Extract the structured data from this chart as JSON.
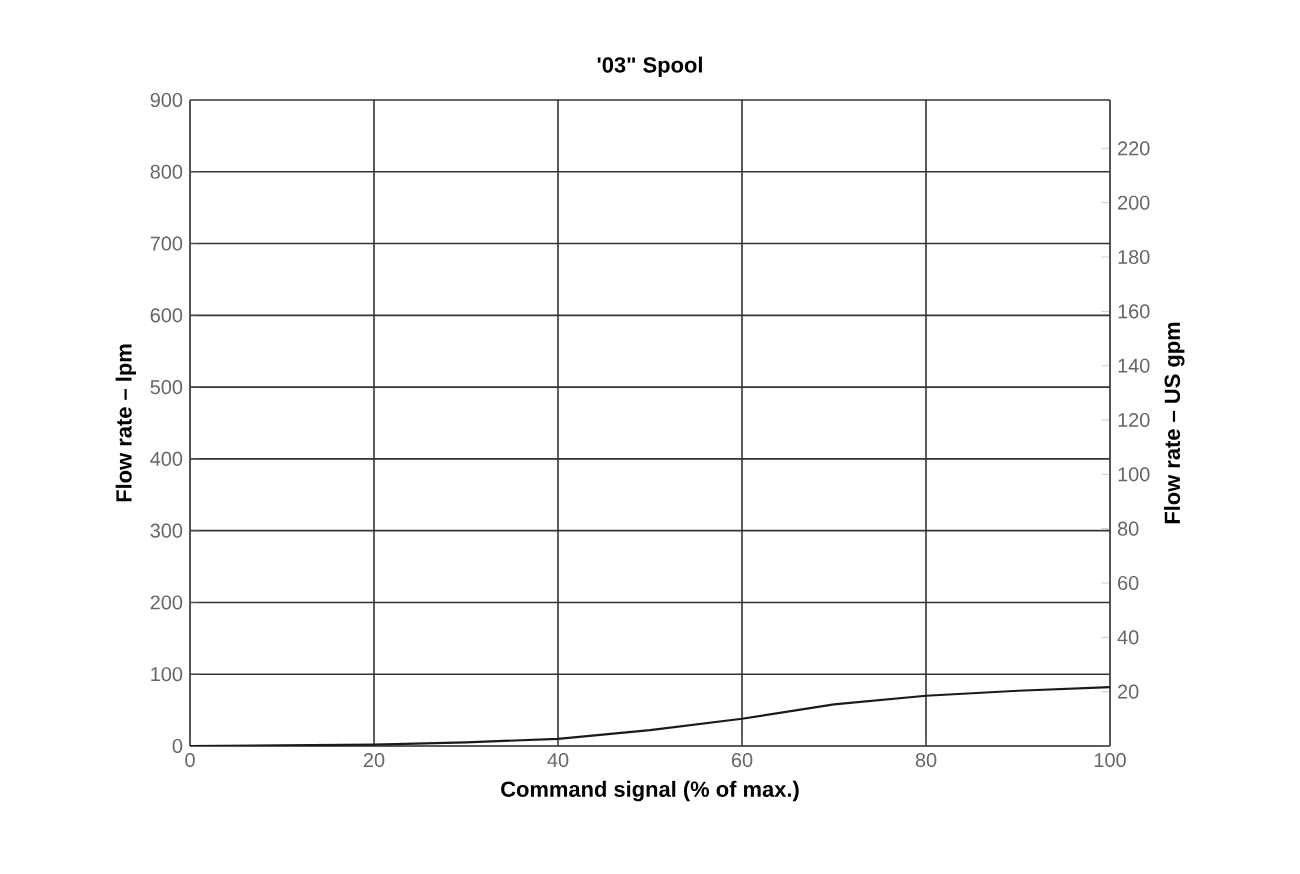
{
  "chart_data": {
    "type": "line",
    "title": "'03\" Spool",
    "xlabel": "Command signal (% of max.)",
    "ylabel": "Flow rate – lpm",
    "y2label": "Flow rate – US gpm",
    "x": [
      0,
      10,
      20,
      30,
      40,
      50,
      60,
      70,
      80,
      90,
      100
    ],
    "series": [
      {
        "color": "#1a1a1a",
        "values": [
          0,
          1,
          2,
          5,
          10,
          22,
          38,
          58,
          70,
          77,
          82
        ]
      }
    ],
    "xlim": [
      0,
      100
    ],
    "xticks": [
      0,
      20,
      40,
      60,
      80,
      100
    ],
    "ylim": [
      0,
      900
    ],
    "yticks": [
      0,
      100,
      200,
      300,
      400,
      500,
      600,
      700,
      800,
      900
    ],
    "y2lim": [
      0,
      237.8
    ],
    "y2ticks": [
      {
        "value": 0,
        "label": null
      },
      20,
      40,
      60,
      80,
      100,
      120,
      140,
      160,
      180,
      200,
      220
    ],
    "grid": true,
    "marker": "none",
    "line_style": "solid"
  }
}
